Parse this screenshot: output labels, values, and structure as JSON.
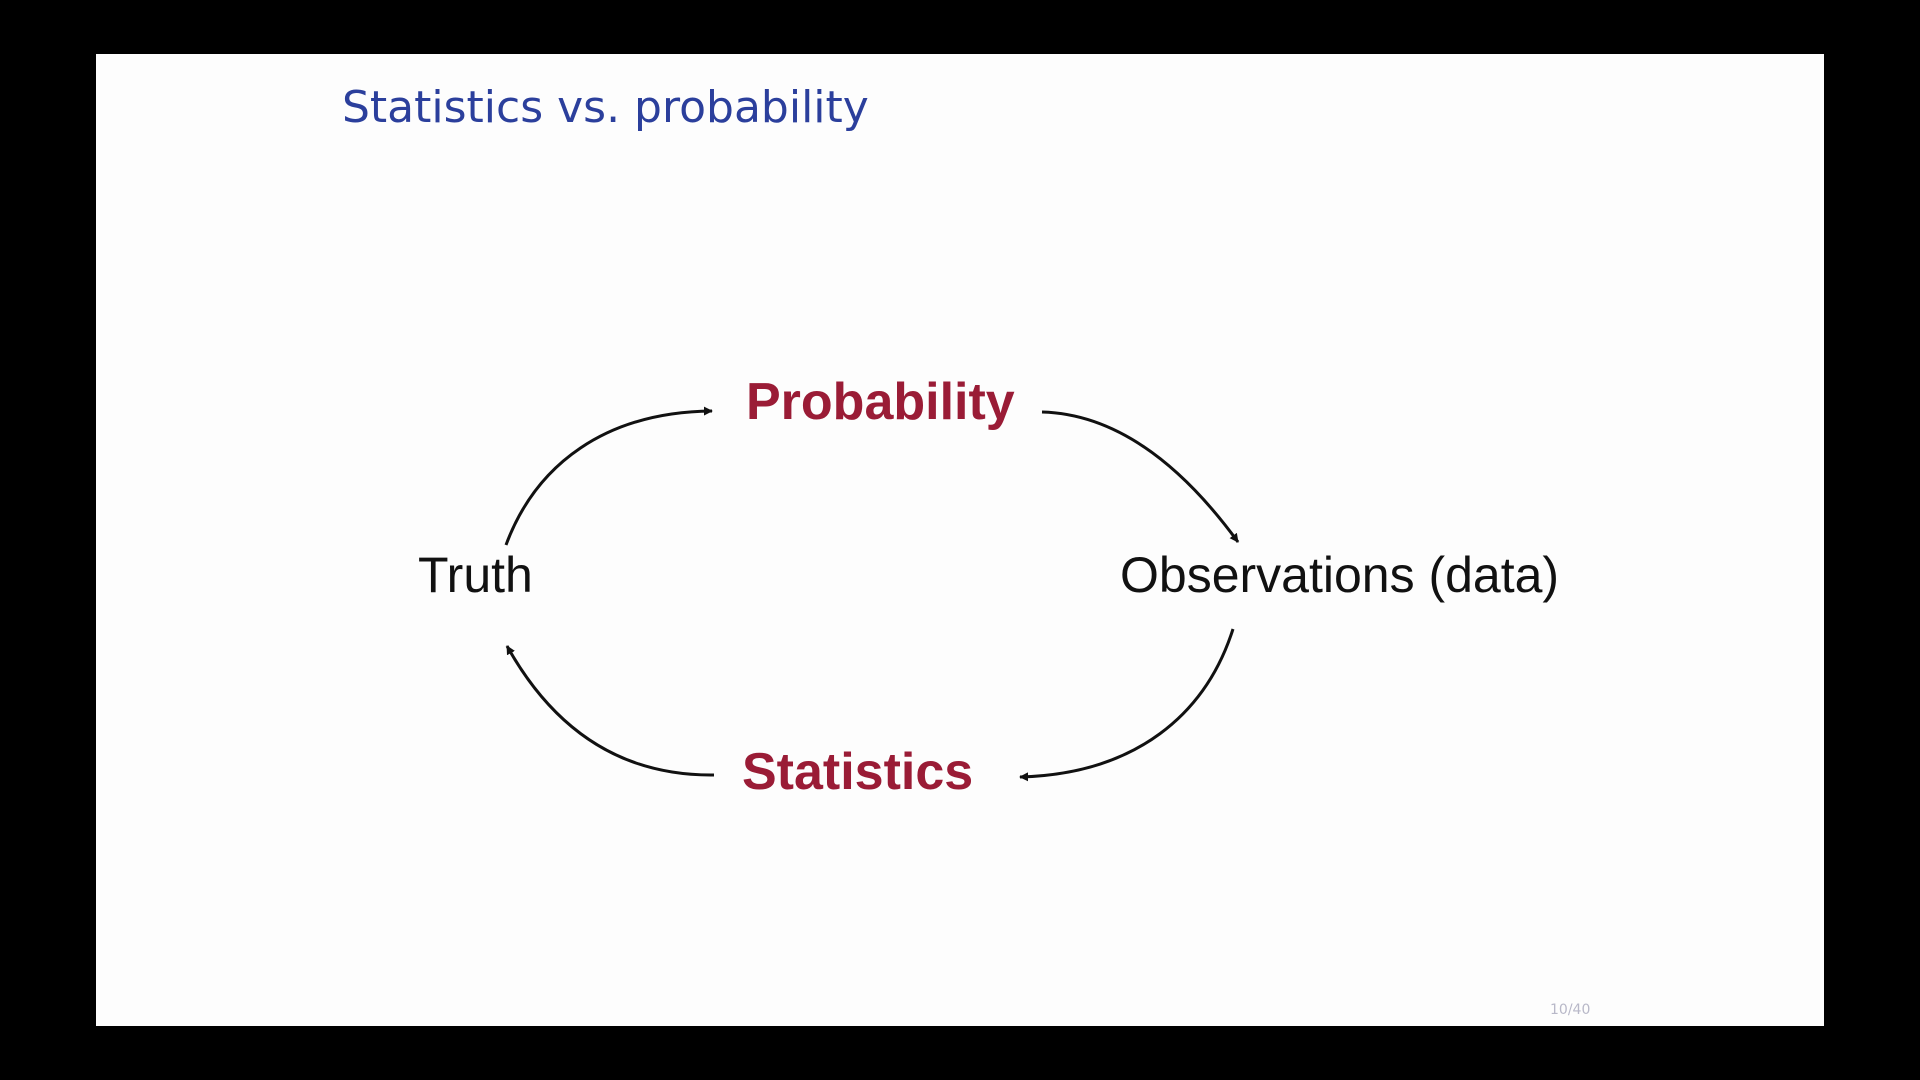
{
  "slide": {
    "title": "Statistics vs. probability",
    "page_number": "10/40",
    "title_color": "#2b3f9c",
    "emphasis_color": "#9a1c36"
  },
  "diagram": {
    "nodes": {
      "truth": "Truth",
      "probability": "Probability",
      "observations": "Observations (data)",
      "statistics": "Statistics"
    },
    "edges": [
      {
        "from": "Truth",
        "to": "Probability"
      },
      {
        "from": "Probability",
        "to": "Observations (data)"
      },
      {
        "from": "Observations (data)",
        "to": "Statistics"
      },
      {
        "from": "Statistics",
        "to": "Truth"
      }
    ]
  }
}
